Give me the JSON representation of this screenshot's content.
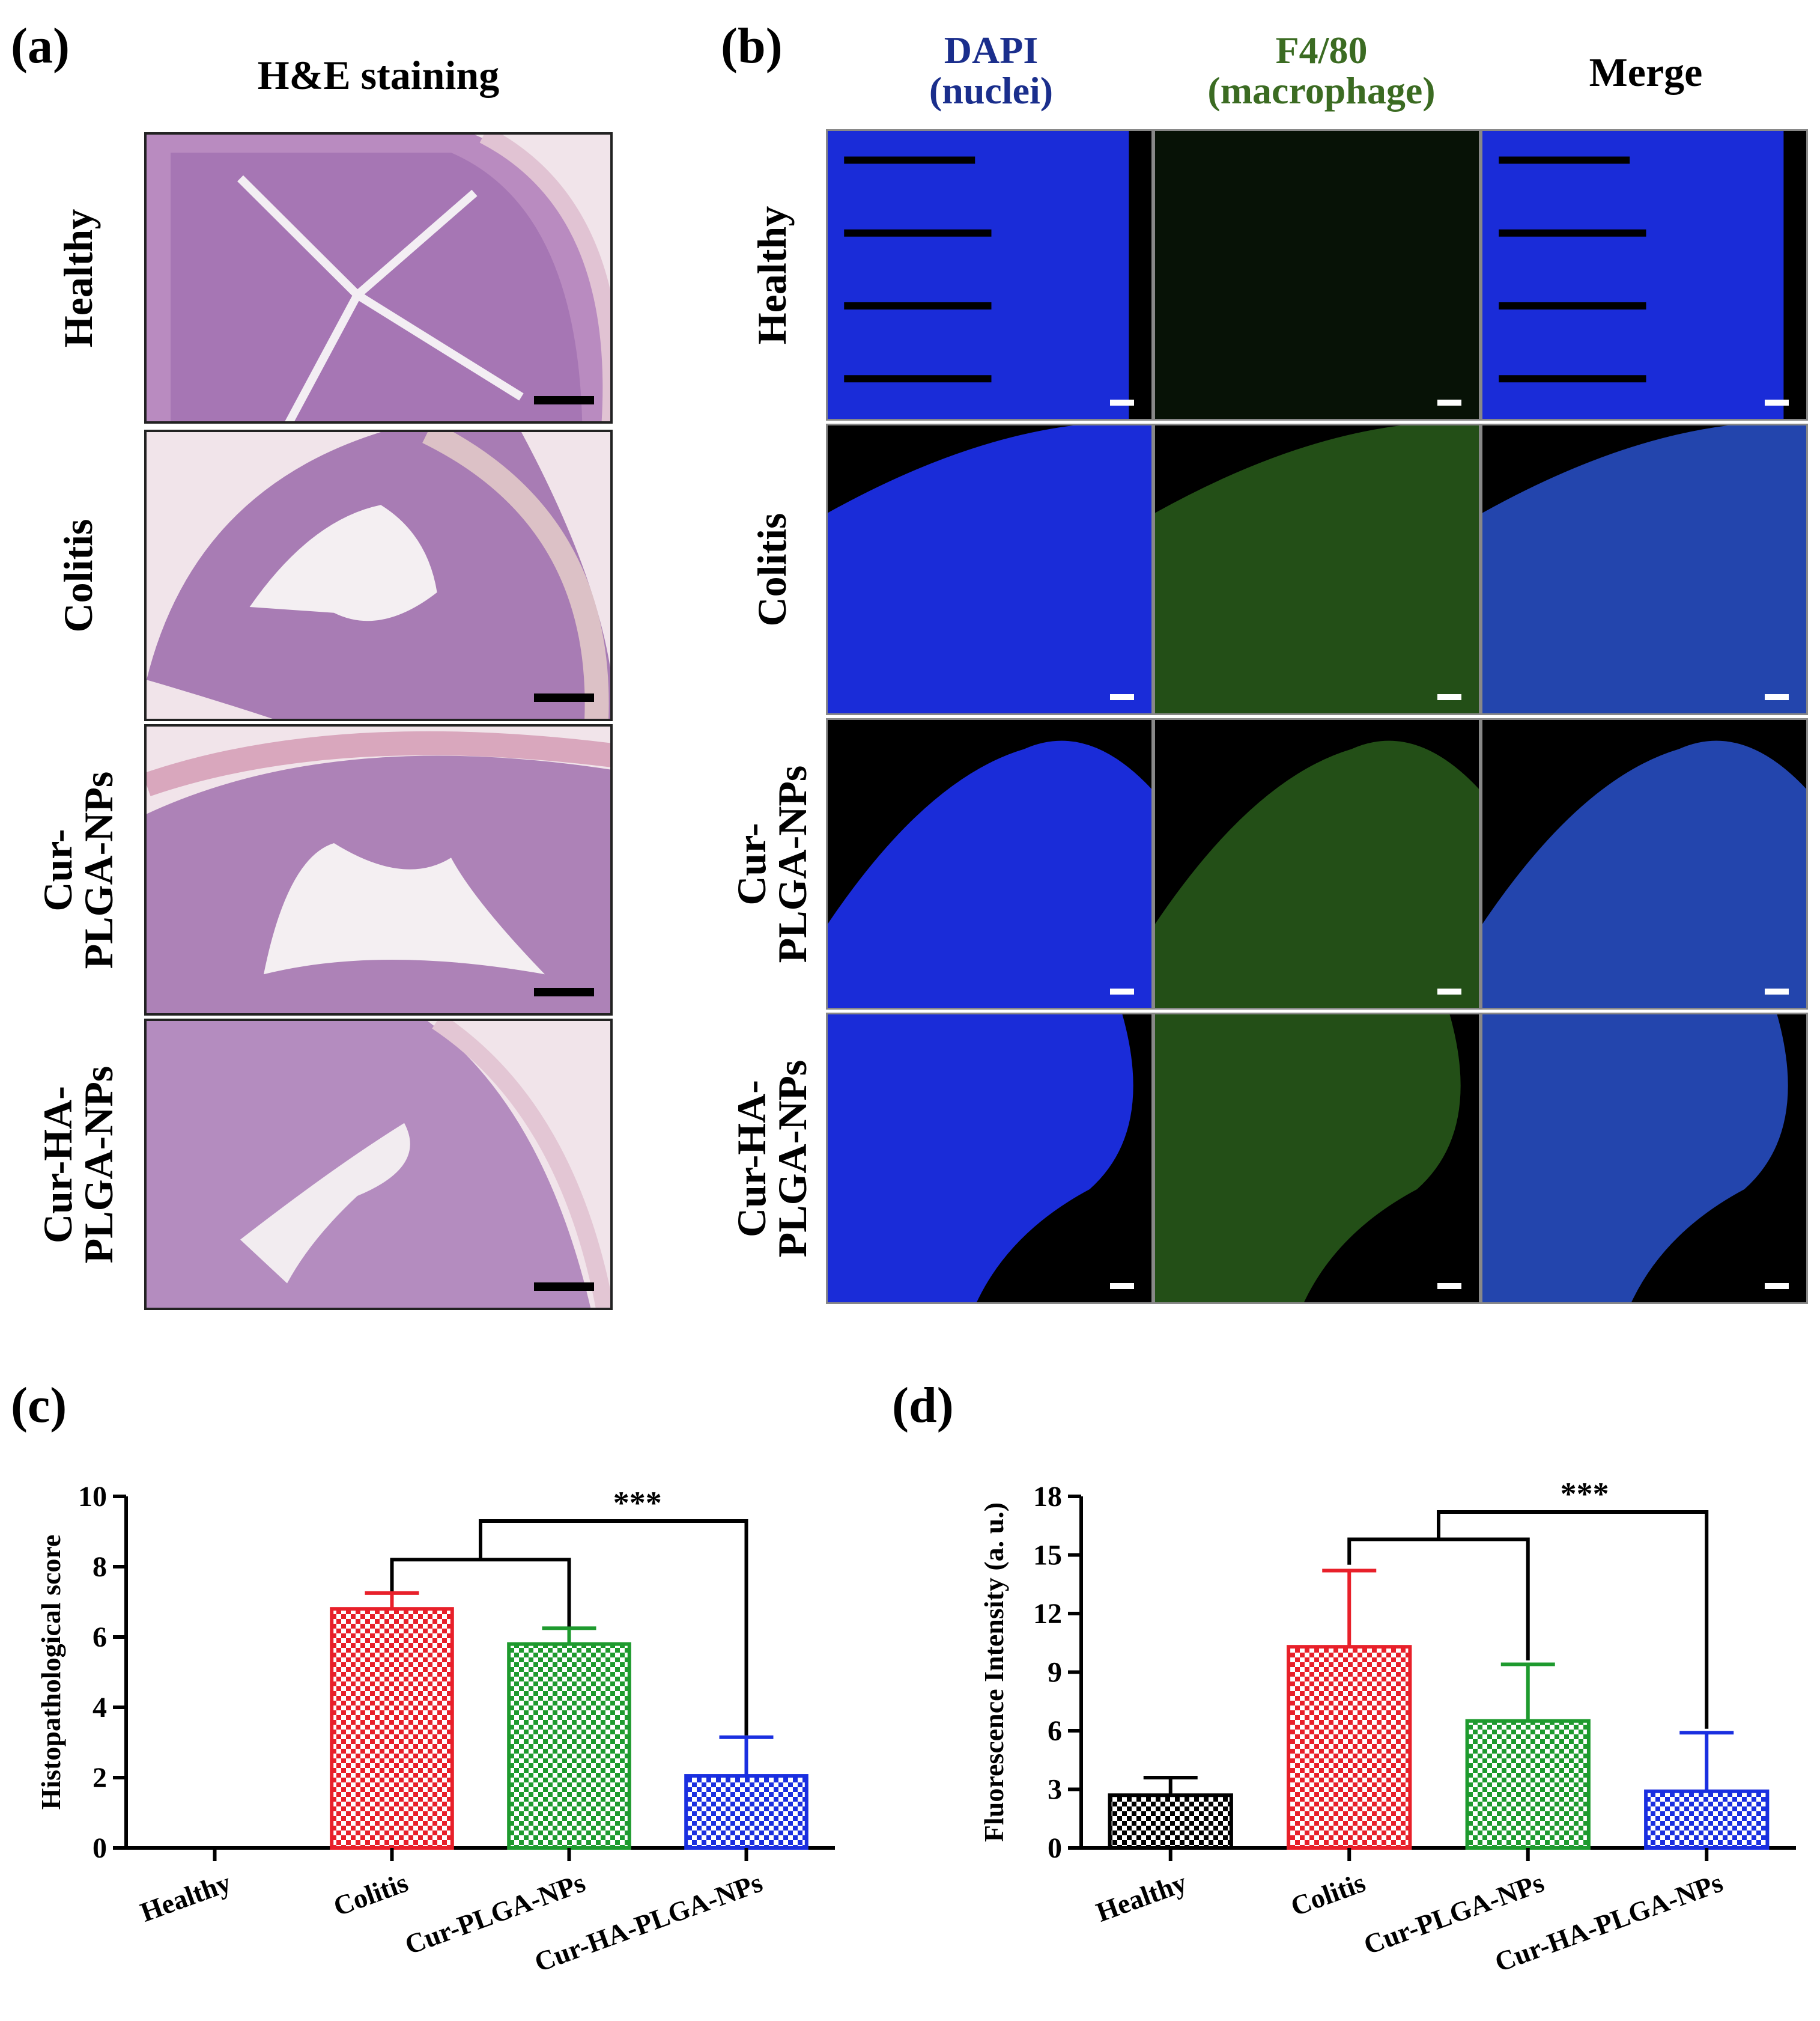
{
  "panels": {
    "a": {
      "label": "(a)",
      "title": "H&E staining",
      "rows": [
        "Healthy",
        "Colitis",
        "Cur-\nPLGA-NPs",
        "Cur-HA-\nPLGA-NPs"
      ]
    },
    "b": {
      "label": "(b)",
      "columns": [
        {
          "line1": "DAPI",
          "line2": "(nuclei)",
          "color": "#1a2e8c"
        },
        {
          "line1": "F4/80",
          "line2": "(macrophage)",
          "color": "#3b6b22"
        },
        {
          "line1": "Merge",
          "line2": "",
          "color": "#000000"
        }
      ],
      "rows": [
        "Healthy",
        "Colitis",
        "Cur-\nPLGA-NPs",
        "Cur-HA-\nPLGA-NPs"
      ]
    },
    "c": {
      "label": "(c)"
    },
    "d": {
      "label": "(d)"
    }
  },
  "chart_data": [
    {
      "id": "c",
      "type": "bar",
      "categories": [
        "Healthy",
        "Colitis",
        "Cur-PLGA-NPs",
        "Cur-HA-PLGA-NPs"
      ],
      "values": [
        0,
        6.8,
        5.8,
        2.05
      ],
      "errors": [
        0,
        0.45,
        0.45,
        1.1
      ],
      "colors": [
        "#000000",
        "#e8202a",
        "#1e9a2e",
        "#1a2fe0"
      ],
      "ylabel": "Histopathological score",
      "xlabel": "",
      "ylim": [
        0,
        10
      ],
      "yticks": [
        0,
        2,
        4,
        6,
        8,
        10
      ],
      "significance": "***",
      "grid": false
    },
    {
      "id": "d",
      "type": "bar",
      "categories": [
        "Healthy",
        "Colitis",
        "Cur-PLGA-NPs",
        "Cur-HA-PLGA-NPs"
      ],
      "values": [
        2.7,
        10.3,
        6.5,
        2.9
      ],
      "errors": [
        0.9,
        3.9,
        2.9,
        3.0
      ],
      "colors": [
        "#000000",
        "#e8202a",
        "#1e9a2e",
        "#1a2fe0"
      ],
      "ylabel": "Fluorescence Intensity (a. u.)",
      "xlabel": "",
      "ylim": [
        0,
        18
      ],
      "yticks": [
        0,
        3,
        6,
        9,
        12,
        15,
        18
      ],
      "significance": "***",
      "grid": false
    }
  ]
}
